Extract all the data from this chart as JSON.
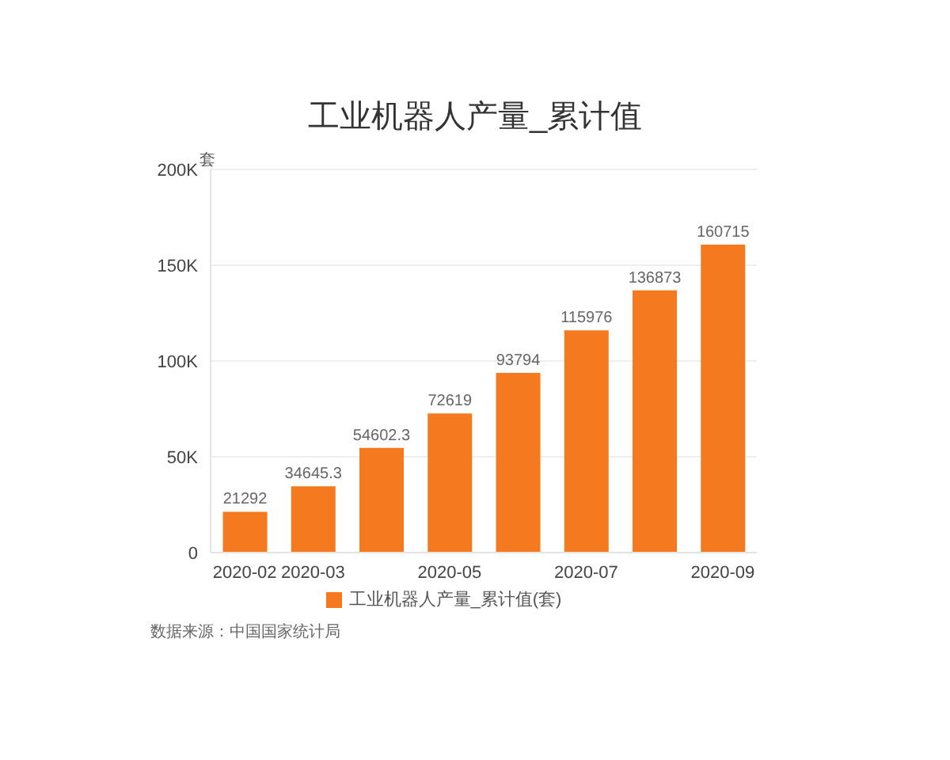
{
  "chart_data": {
    "type": "bar",
    "title": "工业机器人产量_累计值",
    "ylabel": "套",
    "categories": [
      "2020-02",
      "2020-03",
      null,
      "2020-05",
      null,
      "2020-07",
      null,
      "2020-09"
    ],
    "series": [
      {
        "name": "工业机器人产量_累计值(套)",
        "color": "#f57a1f",
        "values": [
          21292,
          34645.3,
          54602.3,
          72619,
          93794,
          115976,
          136873,
          160715
        ]
      }
    ],
    "ylim": [
      0,
      200000
    ],
    "yticks": [
      0,
      {
        "value": 50000,
        "label": "50K"
      },
      {
        "value": 100000,
        "label": "100K"
      },
      {
        "value": 150000,
        "label": "150K"
      },
      {
        "value": 200000,
        "label": "200K"
      }
    ],
    "grid": "y",
    "legend": "bottom",
    "data_labels": true,
    "annotations": [
      "数据来源：中国国家统计局"
    ]
  }
}
